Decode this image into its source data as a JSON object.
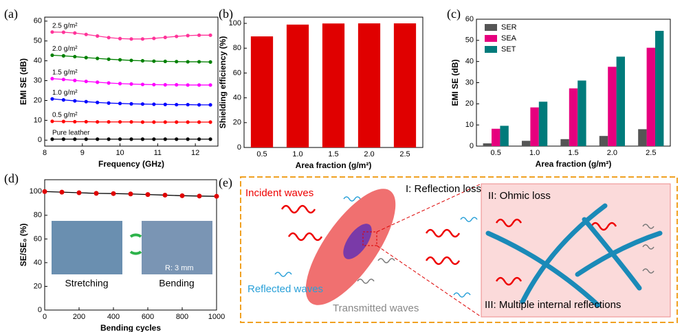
{
  "chart_data": [
    {
      "type": "line",
      "label": "(a)",
      "xlabel": "Frequency (GHz)",
      "ylabel": "EMI SE (dB)",
      "x": [
        8.2,
        8.5,
        8.8,
        9.1,
        9.4,
        9.7,
        10.0,
        10.3,
        10.6,
        10.9,
        11.2,
        11.5,
        11.8,
        12.1,
        12.4
      ],
      "xlim": [
        8,
        12.6
      ],
      "xticks": [
        8,
        9,
        10,
        11,
        12
      ],
      "ylim": [
        -3,
        62
      ],
      "yticks": [
        0,
        10,
        20,
        30,
        40,
        50,
        60
      ],
      "series": [
        {
          "name": "Pure leather",
          "color": "#000000",
          "values": [
            0.5,
            0.5,
            0.5,
            0.5,
            0.5,
            0.5,
            0.5,
            0.5,
            0.5,
            0.5,
            0.5,
            0.5,
            0.5,
            0.5,
            0.5
          ]
        },
        {
          "name": "0.5 g/m²",
          "color": "#ff0000",
          "values": [
            9.5,
            9.4,
            9.3,
            9.3,
            9.2,
            9.2,
            9.2,
            9.2,
            9.1,
            9.1,
            9.1,
            9.1,
            9.1,
            9.1,
            9.1
          ]
        },
        {
          "name": "1.0 g/m²",
          "color": "#0000ff",
          "values": [
            20.8,
            20.3,
            19.8,
            19.4,
            19.0,
            18.7,
            18.5,
            18.3,
            18.2,
            18.1,
            18.0,
            17.9,
            17.9,
            17.8,
            17.8
          ]
        },
        {
          "name": "1.5 g/m²",
          "color": "#ff00ff",
          "values": [
            31.0,
            30.6,
            30.1,
            29.6,
            29.2,
            28.8,
            28.5,
            28.3,
            28.1,
            28.0,
            27.9,
            27.9,
            27.8,
            27.8,
            27.8
          ]
        },
        {
          "name": "2.0 g/m²",
          "color": "#008000",
          "values": [
            42.8,
            42.5,
            42.1,
            41.6,
            41.2,
            40.8,
            40.5,
            40.2,
            40.0,
            39.8,
            39.7,
            39.6,
            39.5,
            39.5,
            39.4
          ]
        },
        {
          "name": "2.5 g/m²",
          "color": "#ff3399",
          "values": [
            54.5,
            54.4,
            54.0,
            53.3,
            52.5,
            51.7,
            51.2,
            51.0,
            51.0,
            51.3,
            51.8,
            52.3,
            52.7,
            52.9,
            52.9
          ]
        }
      ]
    },
    {
      "type": "bar",
      "label": "(b)",
      "xlabel": "Area fraction (g/m²)",
      "ylabel": "Shielding efficiency (%)",
      "categories": [
        "0.5",
        "1.0",
        "1.5",
        "2.0",
        "2.5"
      ],
      "values": [
        89.5,
        99,
        99.9,
        99.98,
        99.99
      ],
      "color": "#e00000",
      "ylim": [
        0,
        105
      ],
      "yticks": [
        0,
        20,
        40,
        60,
        80,
        100
      ]
    },
    {
      "type": "bar",
      "label": "(c)",
      "xlabel": "Area fraction (g/m²)",
      "ylabel": "EMI SE (dB)",
      "legend": "top-left",
      "categories": [
        "0.5",
        "1.0",
        "1.5",
        "2.0",
        "2.5"
      ],
      "ylim": [
        0,
        60
      ],
      "yticks": [
        0,
        10,
        20,
        30,
        40,
        50,
        60
      ],
      "series": [
        {
          "name": "SER",
          "color": "#555555",
          "values": [
            1.3,
            2.5,
            3.3,
            4.8,
            8.0
          ]
        },
        {
          "name": "SEA",
          "color": "#e6007e",
          "values": [
            8.2,
            18.3,
            27.3,
            37.5,
            46.5
          ]
        },
        {
          "name": "SET",
          "color": "#007b7b",
          "values": [
            9.6,
            21.0,
            31.0,
            42.3,
            54.5
          ]
        }
      ]
    },
    {
      "type": "line",
      "label": "(d)",
      "xlabel": "Bending cycles",
      "ylabel": "SE/SE₀ (%)",
      "x": [
        0,
        100,
        200,
        300,
        400,
        500,
        600,
        700,
        800,
        900,
        1000
      ],
      "xlim": [
        0,
        1000
      ],
      "xticks": [
        0,
        200,
        400,
        600,
        800,
        1000
      ],
      "ylim": [
        0,
        110
      ],
      "yticks": [
        0,
        20,
        40,
        60,
        80,
        100
      ],
      "series": [
        {
          "color": "#e00000",
          "line_color": "#000000",
          "values": [
            100,
            99.5,
            99,
            98.5,
            98.3,
            98,
            97.5,
            97,
            96.5,
            96.2,
            96
          ]
        }
      ],
      "annotations": [
        "Stretching",
        "Bending",
        "R: 3 mm"
      ]
    }
  ],
  "diagram": {
    "label": "(e)",
    "incident": "Incident waves",
    "reflected": "Reflected waves",
    "transmitted": "Transmitted waves",
    "reflection": "I: Reflection loss",
    "ohmic": "II: Ohmic loss",
    "multiple": "III: Multiple internal reflections"
  }
}
